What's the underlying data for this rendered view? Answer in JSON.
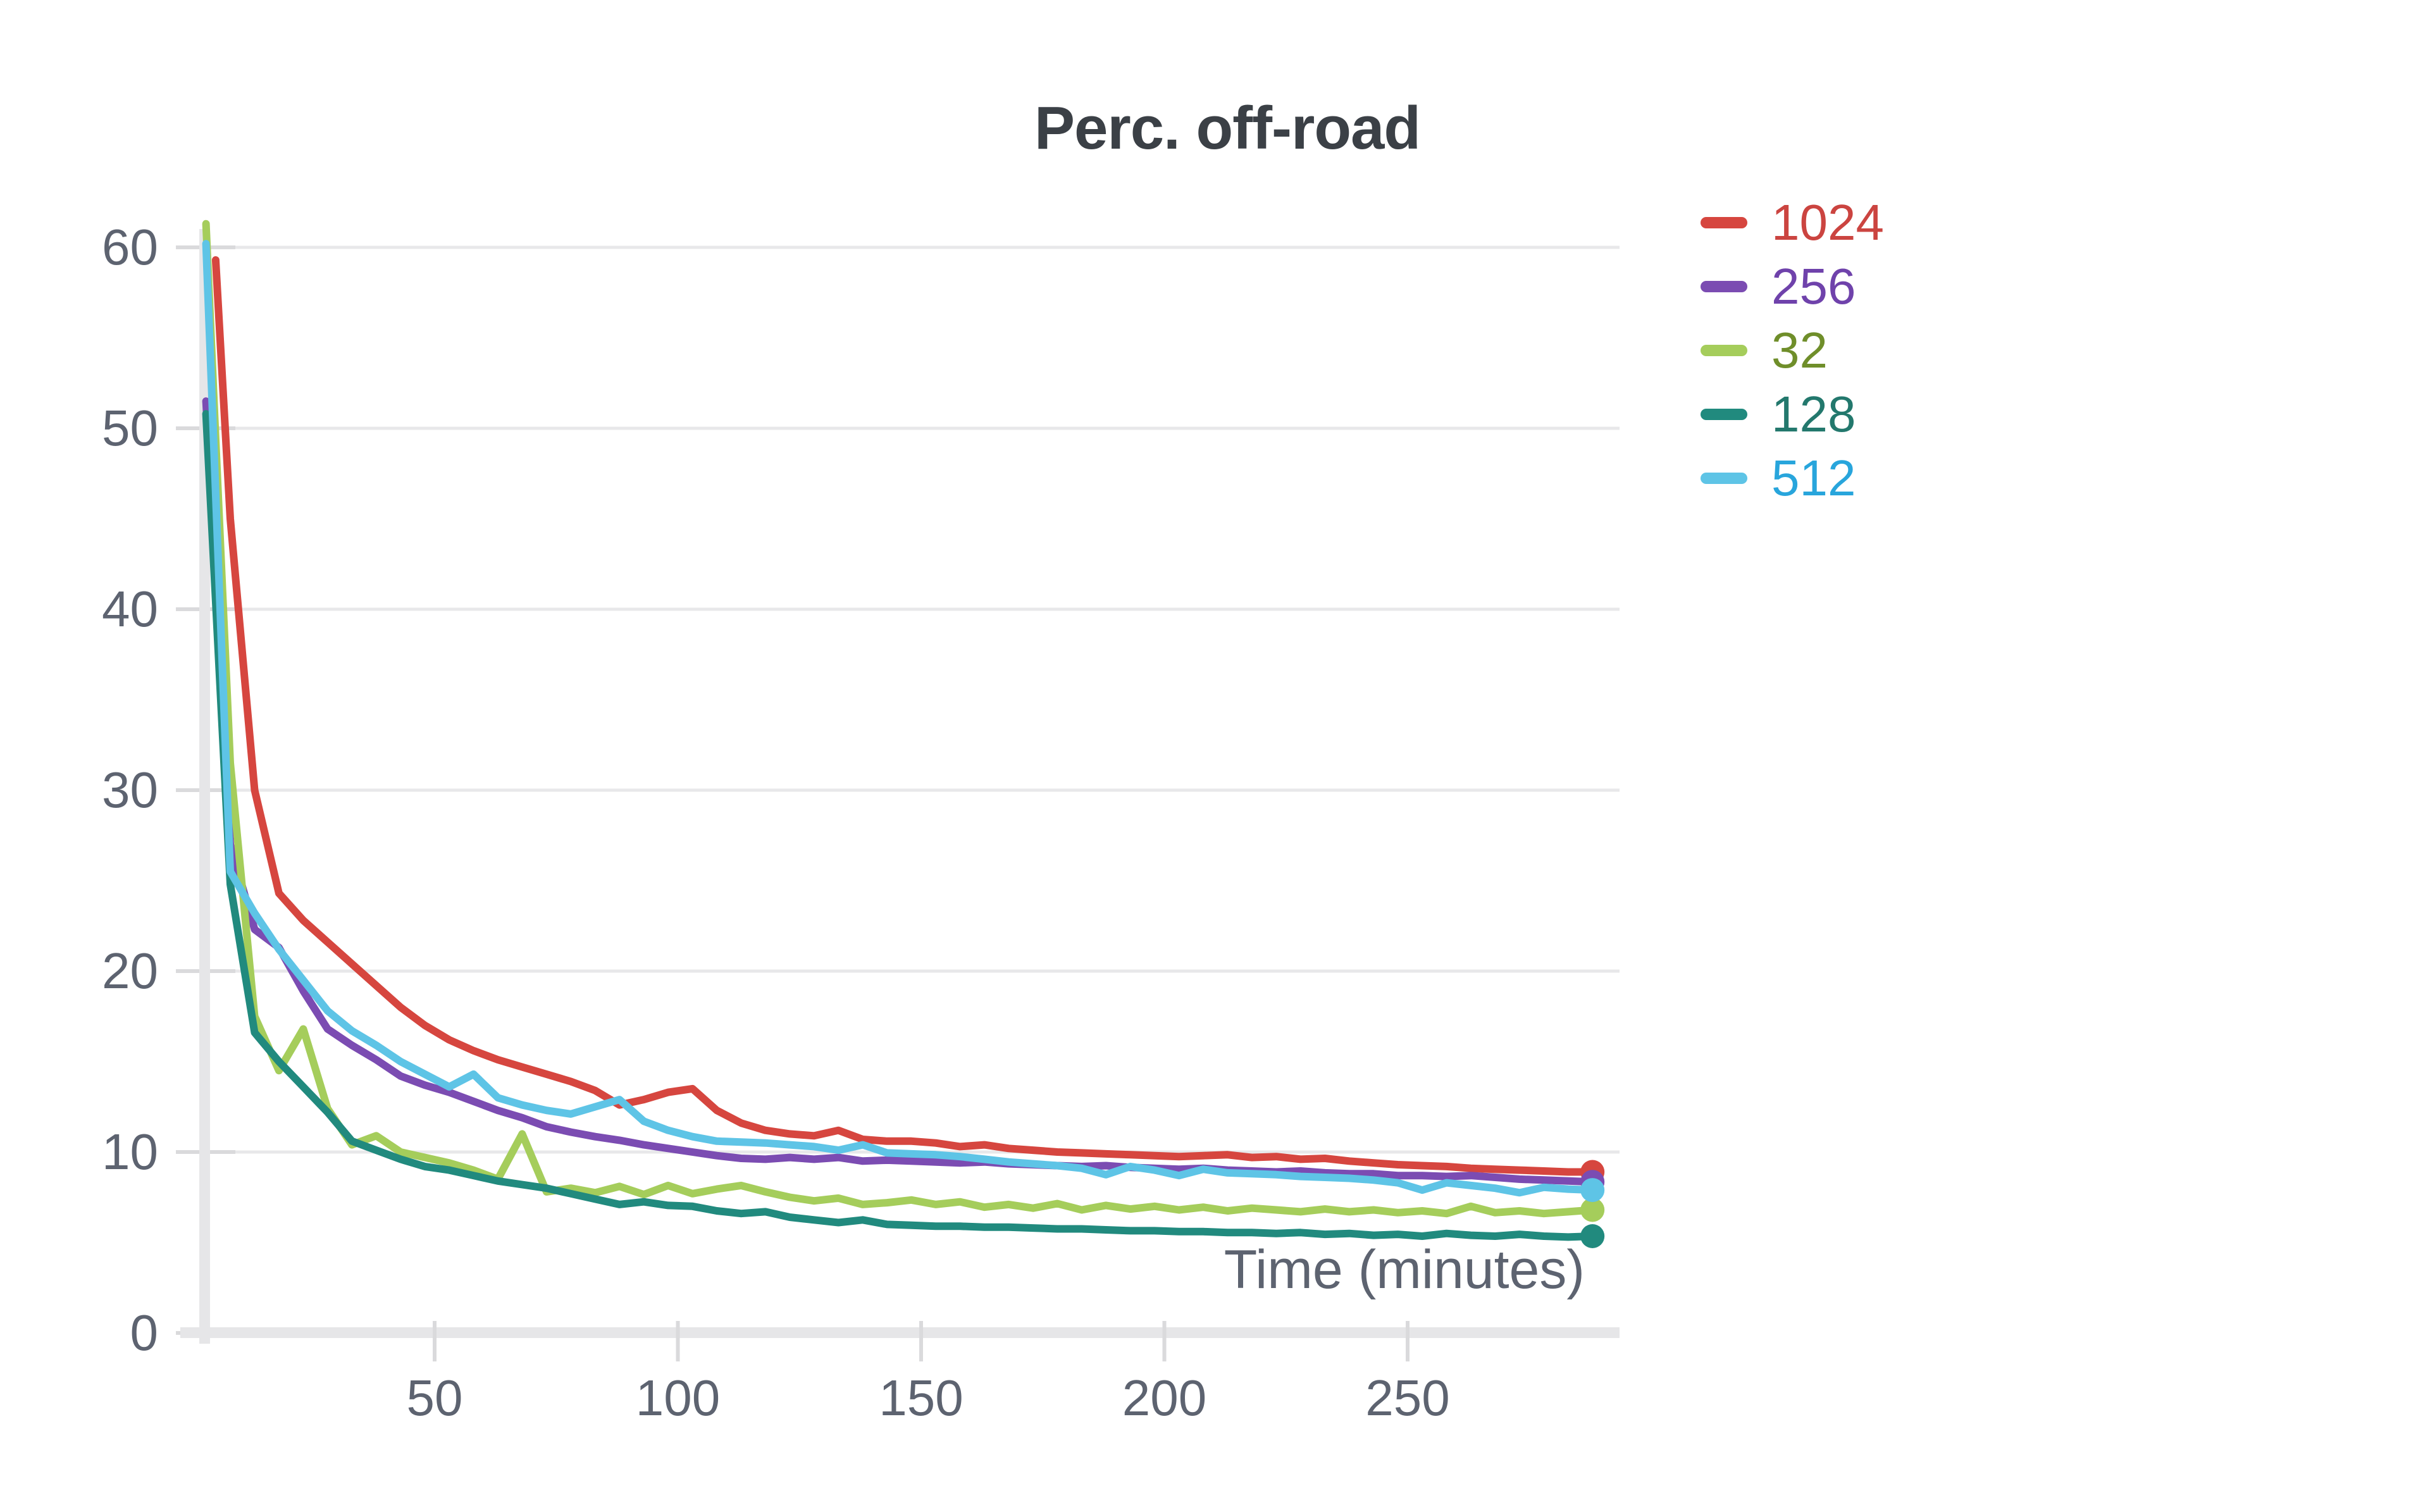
{
  "title": {
    "text": "Perc. off-road"
  },
  "axes": {
    "x_label": "Time (minutes)",
    "y_tick_labels": [
      "0",
      "10",
      "20",
      "30",
      "40",
      "50",
      "60"
    ],
    "x_tick_labels": [
      "50",
      "100",
      "150",
      "200",
      "250"
    ]
  },
  "legend": {
    "position": "right",
    "items": [
      {
        "label": "1024",
        "dash_color": "#d6463f",
        "text_color": "#cb4440"
      },
      {
        "label": "256",
        "dash_color": "#7b4cb2",
        "text_color": "#6f42ab"
      },
      {
        "label": "32",
        "dash_color": "#a5cd5b",
        "text_color": "#6f8e2a"
      },
      {
        "label": "128",
        "dash_color": "#218a7e",
        "text_color": "#23786d"
      },
      {
        "label": "512",
        "dash_color": "#5ec4e6",
        "text_color": "#28a5dc"
      }
    ]
  },
  "chart_data": {
    "type": "line",
    "title": "Perc. off-road",
    "xlabel": "Time (minutes)",
    "ylabel": "",
    "xlim": [
      0,
      296
    ],
    "ylim": [
      0,
      62
    ],
    "x_ticks": [
      50,
      100,
      150,
      200,
      250
    ],
    "y_ticks": [
      0,
      10,
      20,
      30,
      40,
      50,
      60
    ],
    "grid": true,
    "legend_position": "right",
    "end_markers": true,
    "grid_color": "#e8e8ea",
    "axis_color": "#e6e6e8",
    "tick_color": "#dadadc",
    "tick_text_color": "#5d6370",
    "title_color": "#3b4046",
    "series": [
      {
        "name": "1024",
        "color": "#d6463f",
        "x": [
          5,
          8,
          13,
          18,
          23,
          28,
          33,
          38,
          43,
          48,
          53,
          58,
          63,
          68,
          73,
          78,
          83,
          88,
          93,
          98,
          103,
          108,
          113,
          118,
          123,
          128,
          133,
          138,
          143,
          148,
          153,
          158,
          163,
          168,
          173,
          178,
          183,
          188,
          193,
          198,
          203,
          208,
          213,
          218,
          223,
          228,
          233,
          238,
          243,
          248,
          253,
          258,
          263,
          268,
          273,
          278,
          283,
          288
        ],
        "y": [
          59.3,
          45,
          30,
          24.3,
          22.8,
          21.6,
          20.4,
          19.2,
          18.0,
          17.0,
          16.2,
          15.6,
          15.1,
          14.7,
          14.3,
          13.9,
          13.4,
          12.6,
          12.9,
          13.3,
          13.5,
          12.3,
          11.6,
          11.2,
          11.0,
          10.9,
          11.2,
          10.7,
          10.6,
          10.6,
          10.5,
          10.3,
          10.4,
          10.2,
          10.1,
          10.0,
          9.95,
          9.9,
          9.85,
          9.8,
          9.75,
          9.8,
          9.85,
          9.7,
          9.75,
          9.6,
          9.65,
          9.5,
          9.4,
          9.3,
          9.25,
          9.2,
          9.1,
          9.05,
          9.0,
          8.95,
          8.9,
          8.9
        ]
      },
      {
        "name": "256",
        "color": "#7b4cb2",
        "x": [
          3,
          8,
          13,
          18,
          23,
          28,
          33,
          38,
          43,
          48,
          53,
          58,
          63,
          68,
          73,
          78,
          83,
          88,
          93,
          98,
          103,
          108,
          113,
          118,
          123,
          128,
          133,
          138,
          143,
          148,
          153,
          158,
          163,
          168,
          173,
          178,
          183,
          188,
          193,
          198,
          203,
          208,
          213,
          218,
          223,
          228,
          233,
          238,
          243,
          248,
          253,
          258,
          263,
          268,
          273,
          278,
          283,
          288
        ],
        "y": [
          51.5,
          27,
          22.3,
          21.3,
          18.9,
          16.8,
          15.9,
          15.1,
          14.2,
          13.7,
          13.3,
          12.8,
          12.3,
          11.9,
          11.4,
          11.1,
          10.85,
          10.65,
          10.4,
          10.2,
          10.0,
          9.8,
          9.65,
          9.6,
          9.7,
          9.6,
          9.7,
          9.5,
          9.55,
          9.5,
          9.45,
          9.4,
          9.45,
          9.35,
          9.3,
          9.25,
          9.2,
          9.25,
          9.15,
          9.1,
          9.05,
          9.1,
          9.0,
          8.95,
          8.9,
          8.95,
          8.85,
          8.8,
          8.8,
          8.7,
          8.7,
          8.65,
          8.7,
          8.6,
          8.5,
          8.45,
          8.4,
          8.35
        ]
      },
      {
        "name": "32",
        "color": "#a5cd5b",
        "x": [
          3,
          8,
          13,
          18,
          23,
          28,
          33,
          38,
          43,
          48,
          53,
          58,
          63,
          68,
          73,
          78,
          83,
          88,
          93,
          98,
          103,
          108,
          113,
          118,
          123,
          128,
          133,
          138,
          143,
          148,
          153,
          158,
          163,
          168,
          173,
          178,
          183,
          188,
          193,
          198,
          203,
          208,
          213,
          218,
          223,
          228,
          233,
          238,
          243,
          248,
          253,
          258,
          263,
          268,
          273,
          278,
          283,
          288
        ],
        "y": [
          61.3,
          31.5,
          17.5,
          14.5,
          16.8,
          12.4,
          10.4,
          10.9,
          10.0,
          9.7,
          9.4,
          9.0,
          8.5,
          11.0,
          7.8,
          8.0,
          7.75,
          8.1,
          7.65,
          8.15,
          7.7,
          7.95,
          8.15,
          7.8,
          7.5,
          7.3,
          7.45,
          7.1,
          7.2,
          7.35,
          7.1,
          7.25,
          6.95,
          7.1,
          6.9,
          7.15,
          6.8,
          7.05,
          6.85,
          7.0,
          6.8,
          6.95,
          6.75,
          6.9,
          6.8,
          6.7,
          6.85,
          6.7,
          6.8,
          6.65,
          6.75,
          6.6,
          7.0,
          6.65,
          6.75,
          6.6,
          6.7,
          6.8
        ]
      },
      {
        "name": "128",
        "color": "#218a7e",
        "x": [
          3,
          8,
          13,
          18,
          23,
          28,
          33,
          38,
          43,
          48,
          53,
          58,
          63,
          68,
          73,
          78,
          83,
          88,
          93,
          98,
          103,
          108,
          113,
          118,
          123,
          128,
          133,
          138,
          143,
          148,
          153,
          158,
          163,
          168,
          173,
          178,
          183,
          188,
          193,
          198,
          203,
          208,
          213,
          218,
          223,
          228,
          233,
          238,
          243,
          248,
          253,
          258,
          263,
          268,
          273,
          278,
          283,
          288
        ],
        "y": [
          50.8,
          24.8,
          16.6,
          15.0,
          13.6,
          12.2,
          10.6,
          10.1,
          9.6,
          9.2,
          9.0,
          8.7,
          8.4,
          8.2,
          8.0,
          7.7,
          7.4,
          7.1,
          7.25,
          7.05,
          7.0,
          6.75,
          6.6,
          6.7,
          6.4,
          6.25,
          6.1,
          6.25,
          6.0,
          5.95,
          5.9,
          5.9,
          5.85,
          5.85,
          5.8,
          5.75,
          5.75,
          5.7,
          5.65,
          5.65,
          5.6,
          5.6,
          5.55,
          5.55,
          5.5,
          5.55,
          5.45,
          5.5,
          5.4,
          5.45,
          5.35,
          5.5,
          5.4,
          5.35,
          5.45,
          5.35,
          5.3,
          5.35
        ]
      },
      {
        "name": "512",
        "color": "#5ec4e6",
        "x": [
          3,
          8,
          13,
          18,
          23,
          28,
          33,
          38,
          43,
          48,
          53,
          58,
          63,
          68,
          73,
          78,
          83,
          88,
          93,
          98,
          103,
          108,
          113,
          118,
          123,
          128,
          133,
          138,
          143,
          148,
          153,
          158,
          163,
          168,
          173,
          178,
          183,
          188,
          193,
          198,
          203,
          208,
          213,
          218,
          223,
          228,
          233,
          238,
          243,
          248,
          253,
          258,
          263,
          268,
          273,
          278,
          283,
          288
        ],
        "y": [
          60.2,
          25.5,
          23.2,
          21.2,
          19.5,
          17.8,
          16.7,
          15.9,
          15.0,
          14.3,
          13.6,
          14.3,
          13.0,
          12.6,
          12.3,
          12.1,
          12.5,
          12.9,
          11.7,
          11.2,
          10.85,
          10.6,
          10.55,
          10.5,
          10.4,
          10.3,
          10.1,
          10.4,
          9.95,
          9.9,
          9.85,
          9.75,
          9.6,
          9.45,
          9.35,
          9.25,
          9.1,
          8.75,
          9.2,
          9.0,
          8.7,
          9.05,
          8.85,
          8.8,
          8.75,
          8.65,
          8.6,
          8.55,
          8.45,
          8.3,
          7.9,
          8.3,
          8.15,
          8.0,
          7.75,
          8.05,
          7.95,
          7.9
        ]
      }
    ]
  }
}
